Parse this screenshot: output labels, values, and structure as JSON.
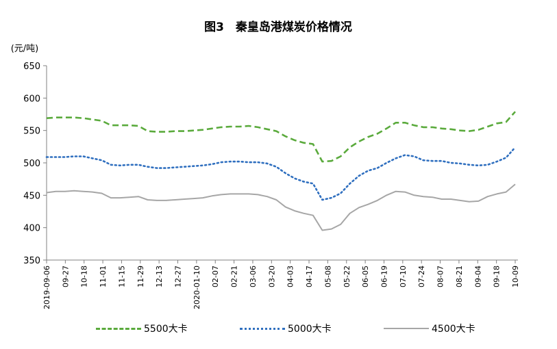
{
  "chart_data": {
    "type": "line",
    "title": "图3　秦皇岛港煤炭价格情况",
    "ylabel": "(元/吨)",
    "xlabel": "",
    "ylim": [
      350,
      650
    ],
    "yticks": [
      350,
      400,
      450,
      500,
      550,
      600,
      650
    ],
    "grid": false,
    "legend_position": "bottom",
    "x_tick_labels": [
      "2019-09-06",
      "09-27",
      "10-18",
      "11-01",
      "11-15",
      "11-29",
      "12-13",
      "12-27",
      "2020-01-10",
      "02-07",
      "02-21",
      "03-06",
      "03-20",
      "04-03",
      "04-17",
      "05-08",
      "05-22",
      "06-05",
      "06-19",
      "07-10",
      "07-24",
      "08-07",
      "08-21",
      "09-04",
      "09-18",
      "10-09"
    ],
    "series": [
      {
        "name": "5500大卡",
        "color": "#5aaa3c",
        "style": "dashed",
        "values": [
          569,
          570,
          570,
          570,
          569,
          567,
          565,
          558,
          558,
          558,
          557,
          549,
          548,
          548,
          549,
          549,
          550,
          551,
          553,
          555,
          556,
          556,
          557,
          555,
          552,
          549,
          541,
          535,
          531,
          529,
          502,
          503,
          510,
          524,
          533,
          540,
          545,
          553,
          562,
          562,
          558,
          555,
          555,
          553,
          552,
          550,
          549,
          551,
          556,
          561,
          563,
          579
        ]
      },
      {
        "name": "5000大卡",
        "color": "#2f6fbf",
        "style": "dotted",
        "values": [
          509,
          509,
          509,
          510,
          510,
          507,
          504,
          497,
          496,
          497,
          497,
          494,
          492,
          492,
          493,
          494,
          495,
          496,
          498,
          501,
          502,
          502,
          501,
          501,
          499,
          494,
          484,
          476,
          471,
          468,
          443,
          446,
          453,
          468,
          480,
          488,
          492,
          500,
          507,
          512,
          510,
          504,
          503,
          503,
          500,
          499,
          497,
          496,
          497,
          502,
          508,
          524
        ]
      },
      {
        "name": "4500大卡",
        "color": "#a6a6a6",
        "style": "solid",
        "values": [
          454,
          456,
          456,
          457,
          456,
          455,
          453,
          446,
          446,
          447,
          448,
          443,
          442,
          442,
          443,
          444,
          445,
          446,
          449,
          451,
          452,
          452,
          452,
          451,
          448,
          443,
          432,
          426,
          422,
          419,
          396,
          398,
          405,
          422,
          431,
          436,
          442,
          450,
          456,
          455,
          450,
          448,
          447,
          444,
          444,
          442,
          440,
          441,
          448,
          452,
          455,
          467
        ]
      }
    ]
  }
}
